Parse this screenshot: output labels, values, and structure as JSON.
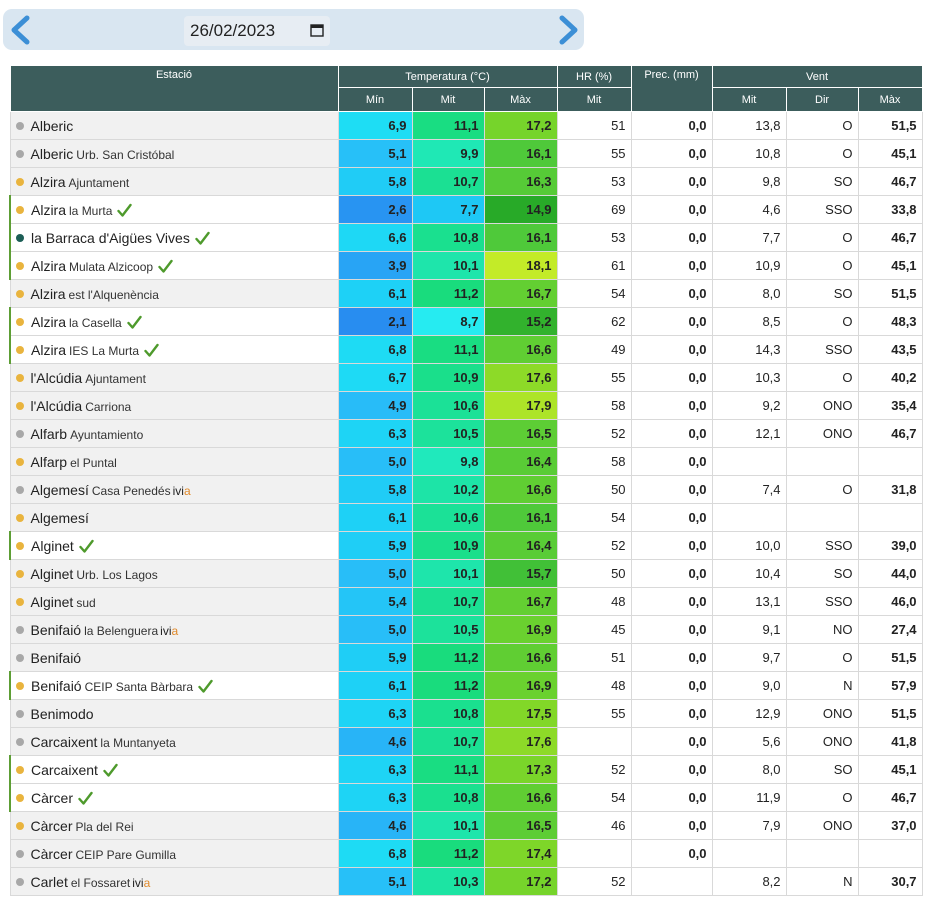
{
  "date": "26/02/2023",
  "headers": {
    "station": "Estació",
    "temperature": "Temperatura (°C)",
    "hr": "HR (%)",
    "prec": "Prec. (mm)",
    "wind": "Vent",
    "min": "Mín",
    "avg": "Mit",
    "max": "Màx",
    "hr_avg": "Mit",
    "wind_avg": "Mit",
    "wind_dir": "Dir",
    "wind_max": "Màx"
  },
  "status_colors": {
    "gray": "#a8a8a8",
    "yellow": "#e9b43e",
    "teal": "#1c5e56"
  },
  "check_color": "#4e9a2c",
  "rows": [
    {
      "name": "Alberic",
      "sub": "",
      "dot": "gray",
      "marked": false,
      "check": false,
      "ivia": false,
      "tmin": "6,9",
      "tavg": "11,1",
      "tmax": "17,2",
      "hr": "51",
      "prec": "0,0",
      "wavg": "13,8",
      "wdir": "O",
      "wmax": "51,5"
    },
    {
      "name": "Alberic",
      "sub": "Urb. San Cristóbal",
      "dot": "gray",
      "marked": false,
      "check": false,
      "ivia": false,
      "tmin": "5,1",
      "tavg": "9,9",
      "tmax": "16,1",
      "hr": "55",
      "prec": "0,0",
      "wavg": "10,8",
      "wdir": "O",
      "wmax": "45,1"
    },
    {
      "name": "Alzira",
      "sub": "Ajuntament",
      "dot": "yellow",
      "marked": false,
      "check": false,
      "ivia": false,
      "tmin": "5,8",
      "tavg": "10,7",
      "tmax": "16,3",
      "hr": "53",
      "prec": "0,0",
      "wavg": "9,8",
      "wdir": "SO",
      "wmax": "46,7"
    },
    {
      "name": "Alzira",
      "sub": "la Murta",
      "dot": "yellow",
      "marked": true,
      "check": true,
      "ivia": false,
      "tmin": "2,6",
      "tavg": "7,7",
      "tmax": "14,9",
      "hr": "69",
      "prec": "0,0",
      "wavg": "4,6",
      "wdir": "SSO",
      "wmax": "33,8"
    },
    {
      "name": "la Barraca d'Aigües Vives",
      "sub": "",
      "dot": "teal",
      "marked": true,
      "check": true,
      "ivia": false,
      "tmin": "6,6",
      "tavg": "10,8",
      "tmax": "16,1",
      "hr": "53",
      "prec": "0,0",
      "wavg": "7,7",
      "wdir": "O",
      "wmax": "46,7"
    },
    {
      "name": "Alzira",
      "sub": "Mulata Alzicoop",
      "dot": "yellow",
      "marked": true,
      "check": true,
      "ivia": false,
      "tmin": "3,9",
      "tavg": "10,1",
      "tmax": "18,1",
      "hr": "61",
      "prec": "0,0",
      "wavg": "10,9",
      "wdir": "O",
      "wmax": "45,1"
    },
    {
      "name": "Alzira",
      "sub": "est l'Alquenència",
      "dot": "yellow",
      "marked": false,
      "check": false,
      "ivia": false,
      "tmin": "6,1",
      "tavg": "11,2",
      "tmax": "16,7",
      "hr": "54",
      "prec": "0,0",
      "wavg": "8,0",
      "wdir": "SO",
      "wmax": "51,5"
    },
    {
      "name": "Alzira",
      "sub": "la Casella",
      "dot": "yellow",
      "marked": true,
      "check": true,
      "ivia": false,
      "tmin": "2,1",
      "tavg": "8,7",
      "tmax": "15,2",
      "hr": "62",
      "prec": "0,0",
      "wavg": "8,5",
      "wdir": "O",
      "wmax": "48,3"
    },
    {
      "name": "Alzira",
      "sub": "IES La Murta",
      "dot": "yellow",
      "marked": true,
      "check": true,
      "ivia": false,
      "tmin": "6,8",
      "tavg": "11,1",
      "tmax": "16,6",
      "hr": "49",
      "prec": "0,0",
      "wavg": "14,3",
      "wdir": "SSO",
      "wmax": "43,5"
    },
    {
      "name": "l'Alcúdia",
      "sub": "Ajuntament",
      "dot": "yellow",
      "marked": false,
      "check": false,
      "ivia": false,
      "tmin": "6,7",
      "tavg": "10,9",
      "tmax": "17,6",
      "hr": "55",
      "prec": "0,0",
      "wavg": "10,3",
      "wdir": "O",
      "wmax": "40,2"
    },
    {
      "name": "l'Alcúdia",
      "sub": "Carriona",
      "dot": "yellow",
      "marked": false,
      "check": false,
      "ivia": false,
      "tmin": "4,9",
      "tavg": "10,6",
      "tmax": "17,9",
      "hr": "58",
      "prec": "0,0",
      "wavg": "9,2",
      "wdir": "ONO",
      "wmax": "35,4"
    },
    {
      "name": "Alfarb",
      "sub": "Ayuntamiento",
      "dot": "gray",
      "marked": false,
      "check": false,
      "ivia": false,
      "tmin": "6,3",
      "tavg": "10,5",
      "tmax": "16,5",
      "hr": "52",
      "prec": "0,0",
      "wavg": "12,1",
      "wdir": "ONO",
      "wmax": "46,7"
    },
    {
      "name": "Alfarp",
      "sub": "el Puntal",
      "dot": "yellow",
      "marked": false,
      "check": false,
      "ivia": false,
      "tmin": "5,0",
      "tavg": "9,8",
      "tmax": "16,4",
      "hr": "58",
      "prec": "0,0",
      "wavg": "",
      "wdir": "",
      "wmax": ""
    },
    {
      "name": "Algemesí",
      "sub": "Casa Penedés",
      "dot": "gray",
      "marked": false,
      "check": false,
      "ivia": true,
      "tmin": "5,8",
      "tavg": "10,2",
      "tmax": "16,6",
      "hr": "50",
      "prec": "0,0",
      "wavg": "7,4",
      "wdir": "O",
      "wmax": "31,8"
    },
    {
      "name": "Algemesí",
      "sub": "",
      "dot": "yellow",
      "marked": false,
      "check": false,
      "ivia": false,
      "tmin": "6,1",
      "tavg": "10,6",
      "tmax": "16,1",
      "hr": "54",
      "prec": "0,0",
      "wavg": "",
      "wdir": "",
      "wmax": ""
    },
    {
      "name": "Alginet",
      "sub": "",
      "dot": "yellow",
      "marked": true,
      "check": true,
      "ivia": false,
      "tmin": "5,9",
      "tavg": "10,9",
      "tmax": "16,4",
      "hr": "52",
      "prec": "0,0",
      "wavg": "10,0",
      "wdir": "SSO",
      "wmax": "39,0"
    },
    {
      "name": "Alginet",
      "sub": "Urb. Los Lagos",
      "dot": "yellow",
      "marked": false,
      "check": false,
      "ivia": false,
      "tmin": "5,0",
      "tavg": "10,1",
      "tmax": "15,7",
      "hr": "50",
      "prec": "0,0",
      "wavg": "10,4",
      "wdir": "SO",
      "wmax": "44,0"
    },
    {
      "name": "Alginet",
      "sub": "sud",
      "dot": "yellow",
      "marked": false,
      "check": false,
      "ivia": false,
      "tmin": "5,4",
      "tavg": "10,7",
      "tmax": "16,7",
      "hr": "48",
      "prec": "0,0",
      "wavg": "13,1",
      "wdir": "SSO",
      "wmax": "46,0"
    },
    {
      "name": "Benifaió",
      "sub": "la Belenguera",
      "dot": "gray",
      "marked": false,
      "check": false,
      "ivia": true,
      "tmin": "5,0",
      "tavg": "10,5",
      "tmax": "16,9",
      "hr": "45",
      "prec": "0,0",
      "wavg": "9,1",
      "wdir": "NO",
      "wmax": "27,4"
    },
    {
      "name": "Benifaió",
      "sub": "",
      "dot": "gray",
      "marked": false,
      "check": false,
      "ivia": false,
      "tmin": "5,9",
      "tavg": "11,2",
      "tmax": "16,6",
      "hr": "51",
      "prec": "0,0",
      "wavg": "9,7",
      "wdir": "O",
      "wmax": "51,5"
    },
    {
      "name": "Benifaió",
      "sub": "CEIP Santa Bàrbara",
      "dot": "yellow",
      "marked": true,
      "check": true,
      "ivia": false,
      "tmin": "6,1",
      "tavg": "11,2",
      "tmax": "16,9",
      "hr": "48",
      "prec": "0,0",
      "wavg": "9,0",
      "wdir": "N",
      "wmax": "57,9"
    },
    {
      "name": "Benimodo",
      "sub": "",
      "dot": "gray",
      "marked": false,
      "check": false,
      "ivia": false,
      "tmin": "6,3",
      "tavg": "10,8",
      "tmax": "17,5",
      "hr": "55",
      "prec": "0,0",
      "wavg": "12,9",
      "wdir": "ONO",
      "wmax": "51,5"
    },
    {
      "name": "Carcaixent",
      "sub": "la Muntanyeta",
      "dot": "gray",
      "marked": false,
      "check": false,
      "ivia": false,
      "tmin": "4,6",
      "tavg": "10,7",
      "tmax": "17,6",
      "hr": "",
      "prec": "0,0",
      "wavg": "5,6",
      "wdir": "ONO",
      "wmax": "41,8"
    },
    {
      "name": "Carcaixent",
      "sub": "",
      "dot": "yellow",
      "marked": true,
      "check": true,
      "ivia": false,
      "tmin": "6,3",
      "tavg": "11,1",
      "tmax": "17,3",
      "hr": "52",
      "prec": "0,0",
      "wavg": "8,0",
      "wdir": "SO",
      "wmax": "45,1"
    },
    {
      "name": "Càrcer",
      "sub": "",
      "dot": "yellow",
      "marked": true,
      "check": true,
      "ivia": false,
      "tmin": "6,3",
      "tavg": "10,8",
      "tmax": "16,6",
      "hr": "54",
      "prec": "0,0",
      "wavg": "11,9",
      "wdir": "O",
      "wmax": "46,7"
    },
    {
      "name": "Càrcer",
      "sub": "Pla del Rei",
      "dot": "yellow",
      "marked": false,
      "check": false,
      "ivia": false,
      "tmin": "4,6",
      "tavg": "10,1",
      "tmax": "16,5",
      "hr": "46",
      "prec": "0,0",
      "wavg": "7,9",
      "wdir": "ONO",
      "wmax": "37,0"
    },
    {
      "name": "Càrcer",
      "sub": "CEIP Pare Gumilla",
      "dot": "gray",
      "marked": false,
      "check": false,
      "ivia": false,
      "tmin": "6,8",
      "tavg": "11,2",
      "tmax": "17,4",
      "hr": "",
      "prec": "0,0",
      "wavg": "",
      "wdir": "",
      "wmax": ""
    },
    {
      "name": "Carlet",
      "sub": "el Fossaret",
      "dot": "gray",
      "marked": false,
      "check": false,
      "ivia": true,
      "tmin": "5,1",
      "tavg": "10,3",
      "tmax": "17,2",
      "hr": "52",
      "prec": "",
      "wavg": "8,2",
      "wdir": "N",
      "wmax": "30,7"
    }
  ]
}
